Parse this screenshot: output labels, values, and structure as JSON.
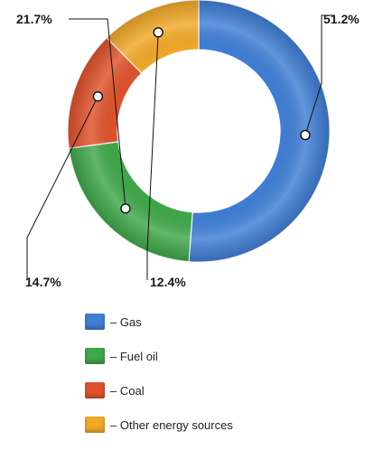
{
  "chart_data": {
    "type": "pie",
    "title": "",
    "categories": [
      "Gas",
      "Fuel oil",
      "Coal",
      "Other energy sources"
    ],
    "values": [
      51.2,
      21.7,
      14.7,
      12.4
    ],
    "labels": [
      "51.2%",
      "21.7%",
      "14.7%",
      "12.4%"
    ],
    "colors": [
      "#3f7fd6",
      "#3fa84a",
      "#e0522b",
      "#f2a928"
    ],
    "legend_labels": [
      "– Gas",
      "– Fuel oil",
      "– Coal",
      "– Other energy sources"
    ],
    "legend_position": "bottom-left"
  }
}
